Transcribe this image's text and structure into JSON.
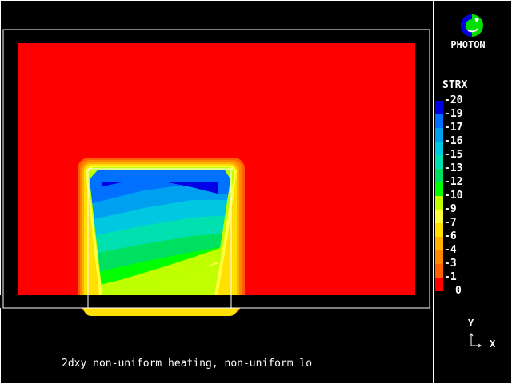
{
  "app": {
    "logo_text": "PHOTON"
  },
  "legend": {
    "variable": "STRX",
    "labels": [
      "-20",
      "-19",
      "-17",
      "-16",
      "-15",
      "-13",
      "-12",
      "-10",
      "-9",
      "-7",
      "-6",
      "-4",
      "-3",
      "-1",
      "0"
    ],
    "colors": [
      "#0000e8",
      "#0070ff",
      "#00a0f0",
      "#00c8e0",
      "#00e0b0",
      "#00e060",
      "#00ff00",
      "#c0ff00",
      "#ffff40",
      "#ffe000",
      "#ffb000",
      "#ff8800",
      "#ff6000",
      "#ff0000"
    ]
  },
  "caption": "2dxy non-uniform heating, non-uniform lo",
  "axes": {
    "y_label": "Y",
    "x_label": "X"
  }
}
